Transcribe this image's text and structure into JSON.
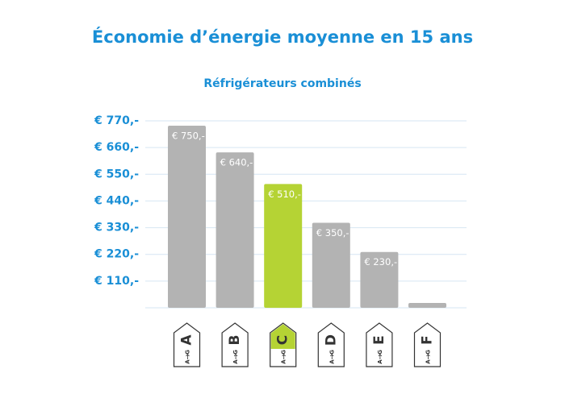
{
  "chart_data": {
    "type": "bar",
    "title": "Économie d’énergie moyenne en 15 ans",
    "subtitle": "Réfrigérateurs combinés",
    "categories": [
      "A",
      "B",
      "C",
      "D",
      "E",
      "F"
    ],
    "values": [
      750,
      640,
      510,
      350,
      230,
      20
    ],
    "value_labels": [
      "€ 750,-",
      "€ 640,-",
      "€ 510,-",
      "€ 350,-",
      "€ 230,-",
      null
    ],
    "colors": [
      "#b3b3b3",
      "#b3b3b3",
      "#b5d334",
      "#b3b3b3",
      "#b3b3b3",
      "#b3b3b3"
    ],
    "label_scale": [
      "A",
      "G"
    ],
    "ylim": [
      0,
      770
    ],
    "yticks": [
      {
        "value": 110,
        "label": "€ 110,-"
      },
      {
        "value": 220,
        "label": "€ 220,-"
      },
      {
        "value": 330,
        "label": "€ 330,-"
      },
      {
        "value": 440,
        "label": "€ 440,-"
      },
      {
        "value": 550,
        "label": "€ 550,-"
      },
      {
        "value": 660,
        "label": "€ 660,-"
      },
      {
        "value": 770,
        "label": "€ 770,-"
      }
    ],
    "grid": true
  }
}
